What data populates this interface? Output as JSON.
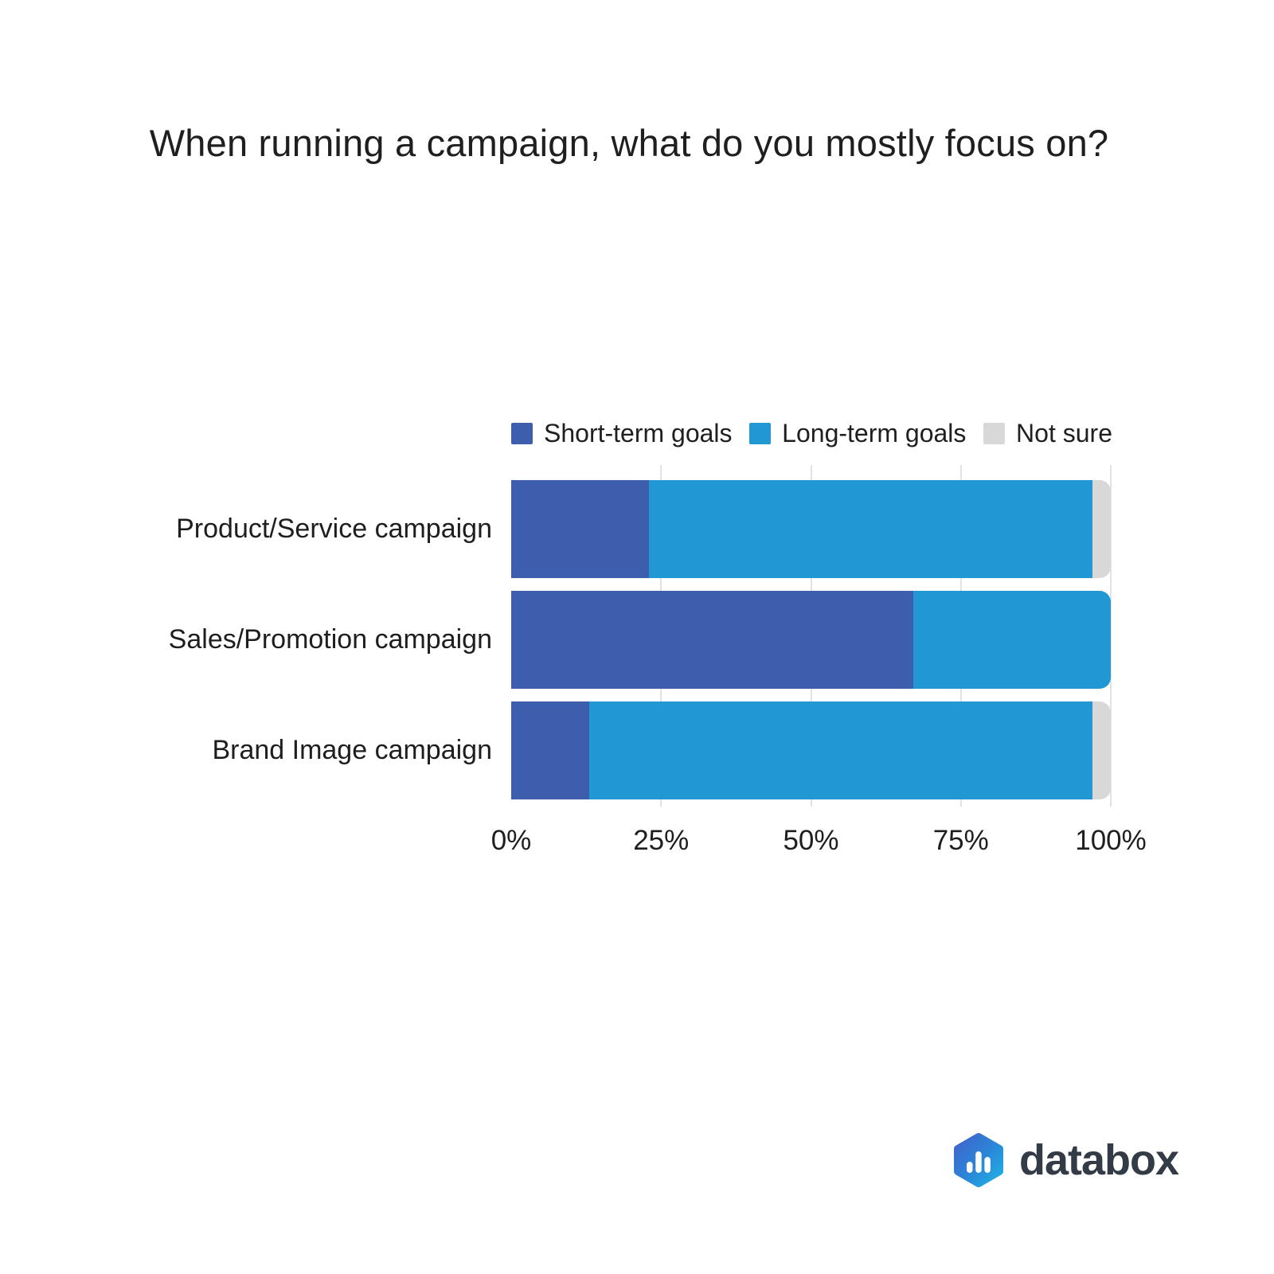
{
  "title": "When running a campaign, what do you mostly focus on?",
  "legend": [
    {
      "label": "Short-term goals",
      "color": "#3c5ead"
    },
    {
      "label": "Long-term goals",
      "color": "#2198d4"
    },
    {
      "label": "Not sure",
      "color": "#d8d8d8"
    }
  ],
  "chart_data": {
    "type": "bar",
    "orientation": "horizontal",
    "stacked": true,
    "title": "When running a campaign, what do you mostly focus on?",
    "categories": [
      "Product/Service campaign",
      "Sales/Promotion campaign",
      "Brand Image campaign"
    ],
    "series": [
      {
        "name": "Short-term goals",
        "color": "#3c5ead",
        "values": [
          23,
          67,
          13
        ]
      },
      {
        "name": "Long-term goals",
        "color": "#2198d4",
        "values": [
          74,
          33,
          84
        ]
      },
      {
        "name": "Not sure",
        "color": "#d8d8d8",
        "values": [
          3,
          0,
          3
        ]
      }
    ],
    "xlabel": "",
    "ylabel": "",
    "xlim": [
      0,
      100
    ],
    "x_ticks": [
      {
        "label": "0%",
        "value": 0
      },
      {
        "label": "25%",
        "value": 25
      },
      {
        "label": "50%",
        "value": 50
      },
      {
        "label": "75%",
        "value": 75
      },
      {
        "label": "100%",
        "value": 100
      }
    ],
    "gridline_values": [
      25,
      50,
      75,
      100
    ],
    "grid": true,
    "legend_position": "top"
  },
  "logo": {
    "text": "databox"
  },
  "colors": {
    "background": "#ffffff",
    "grid": "#e2e2e2",
    "text": "#1f1f1f",
    "logo_text": "#333b47",
    "logo_gradient_start": "#3f65cd",
    "logo_gradient_end": "#1fb0e4"
  }
}
